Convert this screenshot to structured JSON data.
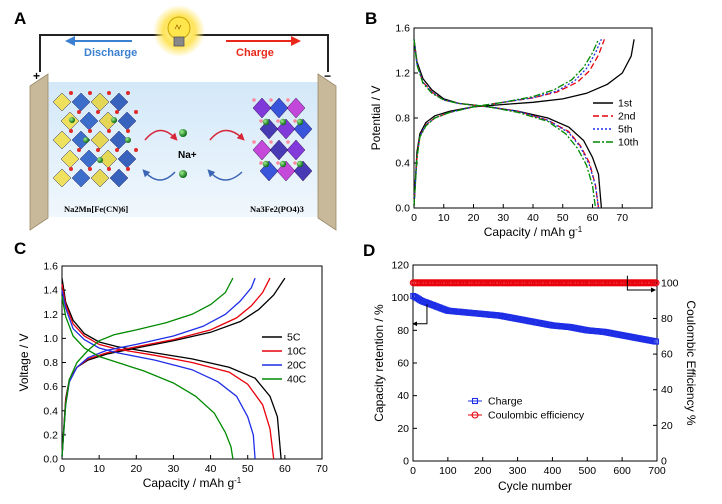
{
  "panels": {
    "A": {
      "label": "A",
      "discharge": "Discharge",
      "charge": "Charge",
      "plus": "+",
      "minus": "−",
      "ion": "Na+",
      "cathode_formula": "Na2Mn[Fe(CN)6]",
      "anode_formula": "Na3Fe2(PO4)3",
      "icons": [
        "light-bulb-icon",
        "cathode-crystal-icon",
        "anode-crystal-icon",
        "sodium-ion-icon"
      ]
    },
    "B": {
      "label": "B"
    },
    "C": {
      "label": "C"
    },
    "D": {
      "label": "D"
    }
  },
  "colors": {
    "black": "#000000",
    "red": "#e8000b",
    "blue": "#1f2fe6",
    "green": "#008a00",
    "magenta": "#b000d8",
    "discharge_arrow": "#3b7fd0",
    "charge_arrow": "#e8281a"
  },
  "chart_data": [
    {
      "panel": "B",
      "type": "line",
      "xlabel": "Capacity / mAh g-1",
      "ylabel": "Potential / V",
      "xlim": [
        0,
        80
      ],
      "ylim": [
        0,
        1.6
      ],
      "xticks": [
        0,
        10,
        20,
        30,
        40,
        50,
        60,
        70
      ],
      "yticks": [
        0.0,
        0.4,
        0.8,
        1.2,
        1.6
      ],
      "legend_position": "right-middle",
      "series": [
        {
          "name": "1st",
          "color": "#000000",
          "dash": "solid",
          "charge": [
            [
              0,
              0.02
            ],
            [
              1,
              0.5
            ],
            [
              2,
              0.66
            ],
            [
              4,
              0.76
            ],
            [
              7,
              0.82
            ],
            [
              12,
              0.86
            ],
            [
              20,
              0.9
            ],
            [
              30,
              0.92
            ],
            [
              40,
              0.94
            ],
            [
              50,
              0.97
            ],
            [
              58,
              1.02
            ],
            [
              65,
              1.1
            ],
            [
              70,
              1.2
            ],
            [
              73,
              1.35
            ],
            [
              74,
              1.5
            ]
          ],
          "discharge": [
            [
              0,
              1.5
            ],
            [
              1,
              1.3
            ],
            [
              3,
              1.15
            ],
            [
              6,
              1.05
            ],
            [
              10,
              0.97
            ],
            [
              15,
              0.93
            ],
            [
              25,
              0.9
            ],
            [
              35,
              0.86
            ],
            [
              45,
              0.8
            ],
            [
              52,
              0.72
            ],
            [
              57,
              0.6
            ],
            [
              60,
              0.45
            ],
            [
              62,
              0.3
            ],
            [
              63,
              0.0
            ]
          ]
        },
        {
          "name": "2nd",
          "color": "#e8000b",
          "dash": "6,3",
          "charge": [
            [
              0,
              0.02
            ],
            [
              1,
              0.45
            ],
            [
              2,
              0.64
            ],
            [
              4,
              0.74
            ],
            [
              7,
              0.8
            ],
            [
              12,
              0.85
            ],
            [
              20,
              0.9
            ],
            [
              30,
              0.94
            ],
            [
              40,
              0.98
            ],
            [
              48,
              1.03
            ],
            [
              55,
              1.12
            ],
            [
              59,
              1.22
            ],
            [
              62,
              1.36
            ],
            [
              64,
              1.5
            ]
          ],
          "discharge": [
            [
              0,
              1.5
            ],
            [
              1,
              1.28
            ],
            [
              3,
              1.12
            ],
            [
              6,
              1.03
            ],
            [
              10,
              0.96
            ],
            [
              15,
              0.93
            ],
            [
              25,
              0.9
            ],
            [
              35,
              0.86
            ],
            [
              45,
              0.78
            ],
            [
              52,
              0.68
            ],
            [
              56,
              0.55
            ],
            [
              59,
              0.4
            ],
            [
              61,
              0.2
            ],
            [
              62,
              0.0
            ]
          ]
        },
        {
          "name": "5th",
          "color": "#1f2fe6",
          "dash": "2,2",
          "charge": [
            [
              0,
              0.02
            ],
            [
              1,
              0.45
            ],
            [
              2,
              0.64
            ],
            [
              4,
              0.74
            ],
            [
              7,
              0.8
            ],
            [
              12,
              0.85
            ],
            [
              20,
              0.9
            ],
            [
              30,
              0.94
            ],
            [
              40,
              0.98
            ],
            [
              48,
              1.04
            ],
            [
              54,
              1.13
            ],
            [
              58,
              1.24
            ],
            [
              61,
              1.38
            ],
            [
              63,
              1.5
            ]
          ],
          "discharge": [
            [
              0,
              1.5
            ],
            [
              1,
              1.28
            ],
            [
              3,
              1.12
            ],
            [
              6,
              1.03
            ],
            [
              10,
              0.96
            ],
            [
              15,
              0.93
            ],
            [
              25,
              0.9
            ],
            [
              35,
              0.86
            ],
            [
              45,
              0.78
            ],
            [
              52,
              0.67
            ],
            [
              56,
              0.54
            ],
            [
              59,
              0.38
            ],
            [
              61,
              0.2
            ],
            [
              62,
              0.0
            ]
          ]
        },
        {
          "name": "10th",
          "color": "#008a00",
          "dash": "7,2,2,2",
          "charge": [
            [
              0,
              0.02
            ],
            [
              1,
              0.45
            ],
            [
              2,
              0.63
            ],
            [
              4,
              0.73
            ],
            [
              7,
              0.8
            ],
            [
              12,
              0.85
            ],
            [
              20,
              0.9
            ],
            [
              30,
              0.94
            ],
            [
              40,
              0.99
            ],
            [
              47,
              1.05
            ],
            [
              53,
              1.14
            ],
            [
              57,
              1.25
            ],
            [
              60,
              1.38
            ],
            [
              62,
              1.5
            ]
          ],
          "discharge": [
            [
              0,
              1.5
            ],
            [
              1,
              1.27
            ],
            [
              3,
              1.11
            ],
            [
              6,
              1.02
            ],
            [
              10,
              0.96
            ],
            [
              15,
              0.93
            ],
            [
              25,
              0.9
            ],
            [
              35,
              0.85
            ],
            [
              45,
              0.77
            ],
            [
              51,
              0.66
            ],
            [
              55,
              0.53
            ],
            [
              58,
              0.38
            ],
            [
              60,
              0.2
            ],
            [
              61,
              0.0
            ]
          ]
        }
      ]
    },
    {
      "panel": "C",
      "type": "line",
      "xlabel": "Capacity / mAh g-1",
      "ylabel": "Voltage / V",
      "xlim": [
        0,
        70
      ],
      "ylim": [
        0,
        1.6
      ],
      "xticks": [
        0,
        10,
        20,
        30,
        40,
        50,
        60,
        70
      ],
      "yticks": [
        0.0,
        0.2,
        0.4,
        0.6,
        0.8,
        1.0,
        1.2,
        1.4,
        1.6
      ],
      "legend_position": "right-middle",
      "series": [
        {
          "name": "5C",
          "color": "#000000",
          "charge": [
            [
              0,
              0.02
            ],
            [
              1,
              0.5
            ],
            [
              2,
              0.66
            ],
            [
              4,
              0.76
            ],
            [
              7,
              0.82
            ],
            [
              12,
              0.87
            ],
            [
              20,
              0.92
            ],
            [
              30,
              0.98
            ],
            [
              40,
              1.05
            ],
            [
              48,
              1.14
            ],
            [
              53,
              1.24
            ],
            [
              57,
              1.36
            ],
            [
              60,
              1.5
            ]
          ],
          "discharge": [
            [
              0,
              1.5
            ],
            [
              1,
              1.3
            ],
            [
              3,
              1.15
            ],
            [
              6,
              1.04
            ],
            [
              10,
              0.97
            ],
            [
              15,
              0.93
            ],
            [
              25,
              0.88
            ],
            [
              35,
              0.83
            ],
            [
              45,
              0.76
            ],
            [
              52,
              0.67
            ],
            [
              56,
              0.52
            ],
            [
              58,
              0.35
            ],
            [
              59,
              0.0
            ]
          ]
        },
        {
          "name": "10C",
          "color": "#e8000b",
          "charge": [
            [
              0,
              0.02
            ],
            [
              1,
              0.48
            ],
            [
              2,
              0.65
            ],
            [
              4,
              0.76
            ],
            [
              7,
              0.83
            ],
            [
              12,
              0.88
            ],
            [
              20,
              0.93
            ],
            [
              30,
              0.99
            ],
            [
              40,
              1.07
            ],
            [
              47,
              1.17
            ],
            [
              51,
              1.27
            ],
            [
              54,
              1.38
            ],
            [
              56,
              1.5
            ]
          ],
          "discharge": [
            [
              0,
              1.45
            ],
            [
              1,
              1.28
            ],
            [
              3,
              1.12
            ],
            [
              6,
              1.02
            ],
            [
              10,
              0.95
            ],
            [
              15,
              0.91
            ],
            [
              25,
              0.86
            ],
            [
              35,
              0.8
            ],
            [
              45,
              0.72
            ],
            [
              50,
              0.62
            ],
            [
              54,
              0.45
            ],
            [
              56,
              0.25
            ],
            [
              57,
              0.0
            ]
          ]
        },
        {
          "name": "20C",
          "color": "#1f2fe6",
          "charge": [
            [
              0,
              0.02
            ],
            [
              1,
              0.45
            ],
            [
              2,
              0.64
            ],
            [
              4,
              0.76
            ],
            [
              7,
              0.84
            ],
            [
              12,
              0.9
            ],
            [
              20,
              0.95
            ],
            [
              30,
              1.02
            ],
            [
              38,
              1.1
            ],
            [
              44,
              1.2
            ],
            [
              48,
              1.31
            ],
            [
              51,
              1.42
            ],
            [
              52,
              1.5
            ]
          ],
          "discharge": [
            [
              0,
              1.4
            ],
            [
              1,
              1.25
            ],
            [
              3,
              1.08
            ],
            [
              6,
              0.99
            ],
            [
              10,
              0.92
            ],
            [
              15,
              0.88
            ],
            [
              25,
              0.82
            ],
            [
              35,
              0.74
            ],
            [
              42,
              0.64
            ],
            [
              47,
              0.52
            ],
            [
              50,
              0.35
            ],
            [
              51.5,
              0.2
            ],
            [
              52,
              0.0
            ]
          ]
        },
        {
          "name": "40C",
          "color": "#008a00",
          "charge": [
            [
              0,
              0.02
            ],
            [
              1,
              0.45
            ],
            [
              2,
              0.66
            ],
            [
              4,
              0.8
            ],
            [
              7,
              0.9
            ],
            [
              10,
              0.98
            ],
            [
              14,
              1.03
            ],
            [
              20,
              1.07
            ],
            [
              28,
              1.13
            ],
            [
              35,
              1.2
            ],
            [
              40,
              1.28
            ],
            [
              44,
              1.38
            ],
            [
              46,
              1.5
            ]
          ],
          "discharge": [
            [
              0,
              1.35
            ],
            [
              1,
              1.18
            ],
            [
              3,
              1.02
            ],
            [
              6,
              0.92
            ],
            [
              10,
              0.85
            ],
            [
              15,
              0.8
            ],
            [
              22,
              0.73
            ],
            [
              30,
              0.63
            ],
            [
              36,
              0.52
            ],
            [
              41,
              0.38
            ],
            [
              44,
              0.22
            ],
            [
              45.5,
              0.1
            ],
            [
              46,
              0.0
            ]
          ]
        }
      ]
    },
    {
      "panel": "D",
      "type": "scatter",
      "xlabel": "Cycle number",
      "ylabel": "Capacity retention / %",
      "y2label": "Coulombic Efficiency %",
      "xlim": [
        0,
        700
      ],
      "ylim": [
        0,
        120
      ],
      "y2lim": [
        0,
        110
      ],
      "xticks": [
        0,
        100,
        200,
        300,
        400,
        500,
        600,
        700
      ],
      "yticks": [
        0,
        20,
        40,
        60,
        80,
        100,
        120
      ],
      "y2ticks": [
        0,
        20,
        40,
        60,
        80,
        100
      ],
      "legend_position": "bottom-left",
      "series": [
        {
          "name": "Charge",
          "axis": "left",
          "color": "#1f2fe6",
          "marker": "square",
          "x": [
            1,
            10,
            25,
            50,
            75,
            100,
            150,
            200,
            250,
            300,
            350,
            400,
            450,
            500,
            550,
            600,
            650,
            700
          ],
          "y": [
            101,
            100,
            98,
            96,
            94,
            92,
            91,
            90,
            89,
            87,
            85,
            83,
            82,
            80,
            79,
            77,
            75,
            73
          ]
        },
        {
          "name": "Coulombic efficiency",
          "axis": "right",
          "color": "#e8000b",
          "marker": "circle",
          "x": [
            1,
            700
          ],
          "y": [
            100,
            100
          ]
        }
      ]
    }
  ]
}
